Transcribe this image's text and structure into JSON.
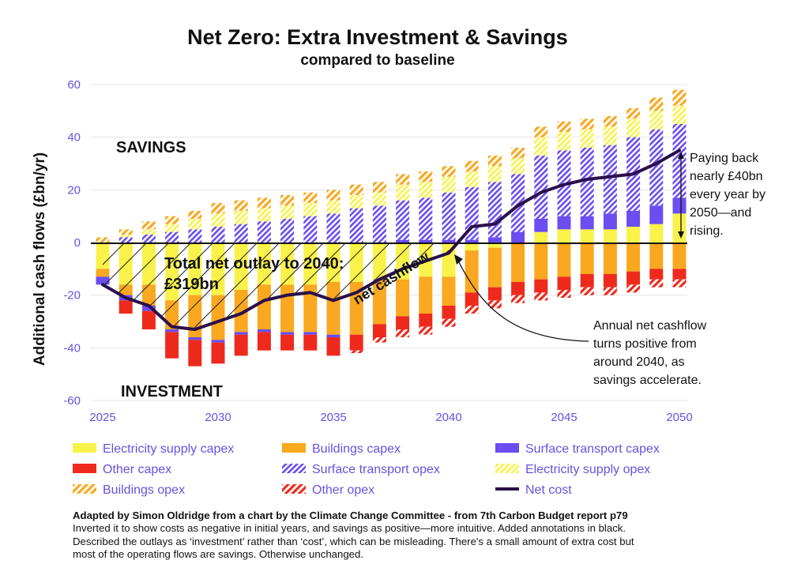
{
  "colors": {
    "electricity_supply_capex": "#f9f24a",
    "buildings_capex": "#f9a81f",
    "surface_transport_capex": "#6b4df0",
    "other_capex": "#ee2a1d",
    "surface_transport_opex": "#6b4df0",
    "electricity_supply_opex": "#f9f24a",
    "buildings_opex": "#f9a81f",
    "other_opex": "#ee2a1d",
    "net_cost": "#2a0f4a",
    "tick": "#6a50e0"
  },
  "annotations": {
    "savings": "SAVINGS",
    "investment": "INVESTMENT",
    "total_outlay_line1": "Total net outlay to 2040:",
    "total_outlay_line2": "£319bn",
    "net_cashflow": "net cashflow",
    "payback": [
      "Paying back",
      "nearly £40bn",
      "every year by",
      "2050—and",
      "rising."
    ],
    "positive": [
      "Annual net cashflow",
      "turns positive from",
      "around 2040, as",
      "savings accelerate."
    ]
  },
  "notes": {
    "credit": "Adapted by Simon Oldridge from a chart by the Climate Change Committee - from 7th Carbon Budget report p79",
    "lines": [
      "Inverted it to show costs as negative in initial years, and savings as positive—more intuitive. Added annotations in black.",
      "Described the outlays as ‘investment’ rather than ‘cost’, which can be misleading. There's a small amount of extra cost but",
      "most of the operating flows are savings. Otherwise unchanged."
    ]
  },
  "chart_data": {
    "type": "bar",
    "stacked": true,
    "title": "Net Zero: Extra Investment & Savings",
    "subtitle": "compared to baseline",
    "ylabel": "Additional cash flows (£bn/yr)",
    "xlabel": "",
    "ylim": [
      -60,
      60
    ],
    "yticks": [
      -60,
      -40,
      -20,
      0,
      20,
      40,
      60
    ],
    "xticks": [
      2025,
      2030,
      2035,
      2040,
      2045,
      2050
    ],
    "grid": true,
    "categories": [
      2025,
      2026,
      2027,
      2028,
      2029,
      2030,
      2031,
      2032,
      2033,
      2034,
      2035,
      2036,
      2037,
      2038,
      2039,
      2040,
      2041,
      2042,
      2043,
      2044,
      2045,
      2046,
      2047,
      2048,
      2049,
      2050
    ],
    "series": [
      {
        "key": "electricity_supply_capex",
        "name": "Electricity supply capex",
        "pattern": "solid",
        "values": [
          -10,
          -16,
          -16,
          -22,
          -20,
          -20,
          -18,
          -16,
          -16,
          -16,
          -15,
          -15,
          -14,
          -14,
          -13,
          -13,
          -3,
          -2,
          0,
          4,
          5,
          5,
          5,
          6,
          7,
          11
        ]
      },
      {
        "key": "buildings_capex",
        "name": "Buildings capex",
        "pattern": "solid",
        "values": [
          -3,
          -4,
          -8,
          -11,
          -16,
          -17,
          -16,
          -17,
          -18,
          -18,
          -20,
          -20,
          -17,
          -14,
          -14,
          -11,
          -16,
          -15,
          -15,
          -14,
          -13,
          -12,
          -12,
          -11,
          -10,
          -10
        ]
      },
      {
        "key": "surface_transport_capex",
        "name": "Surface transport capex",
        "pattern": "solid",
        "values": [
          -3,
          -2,
          -2,
          -1,
          -1,
          -1,
          -1,
          -1,
          -1,
          -1,
          -1,
          0,
          0,
          1,
          1,
          1,
          1,
          2,
          4,
          5,
          5,
          5,
          6,
          6,
          7,
          6
        ]
      },
      {
        "key": "other_capex",
        "name": "Other capex",
        "pattern": "solid",
        "values": [
          0,
          -5,
          -7,
          -10,
          -10,
          -8,
          -8,
          -7,
          -6,
          -6,
          -7,
          -6,
          -5,
          -5,
          -5,
          -5,
          -5,
          -5,
          -5,
          -5,
          -5,
          -5,
          -5,
          -5,
          -4,
          -4
        ]
      },
      {
        "key": "surface_transport_opex",
        "name": "Surface transport opex",
        "pattern": "hatch-dense",
        "values": [
          0,
          2,
          3,
          4,
          5,
          6,
          7,
          8,
          9,
          10,
          11,
          13,
          14,
          15,
          16,
          18,
          20,
          21,
          22,
          24,
          25,
          26,
          26,
          28,
          29,
          28
        ]
      },
      {
        "key": "electricity_supply_opex",
        "name": "Electricity supply opex",
        "pattern": "hatch-dense",
        "values": [
          0,
          1,
          2,
          3,
          4,
          5,
          5,
          5,
          5,
          5,
          5,
          5,
          5,
          6,
          6,
          6,
          6,
          6,
          6,
          7,
          7,
          7,
          7,
          7,
          7,
          7
        ]
      },
      {
        "key": "buildings_opex",
        "name": "Buildings opex",
        "pattern": "hatch",
        "values": [
          2,
          2,
          3,
          3,
          3,
          4,
          4,
          4,
          4,
          4,
          4,
          4,
          4,
          4,
          4,
          4,
          4,
          4,
          4,
          4,
          4,
          4,
          4,
          4,
          5,
          6
        ]
      },
      {
        "key": "other_opex",
        "name": "Other opex",
        "pattern": "hatch",
        "values": [
          0,
          0,
          0,
          0,
          0,
          0,
          0,
          0,
          0,
          0,
          0,
          -1,
          -2,
          -3,
          -3,
          -3,
          -3,
          -3,
          -3,
          -3,
          -3,
          -3,
          -3,
          -3,
          -3,
          -3
        ]
      }
    ],
    "net_cost": {
      "key": "net_cost",
      "name": "Net cost",
      "pattern": "line",
      "values": [
        -16,
        -21,
        -24,
        -32,
        -33,
        -30,
        -27,
        -22,
        -20,
        -19,
        -22,
        -19,
        -14,
        -10,
        -7,
        -4,
        6,
        7,
        14,
        19,
        22,
        24,
        25,
        26,
        30,
        35
      ]
    },
    "legend_order": [
      "electricity_supply_capex",
      "buildings_capex",
      "surface_transport_capex",
      "other_capex",
      "surface_transport_opex",
      "electricity_supply_opex",
      "buildings_opex",
      "other_opex",
      "net_cost"
    ]
  }
}
